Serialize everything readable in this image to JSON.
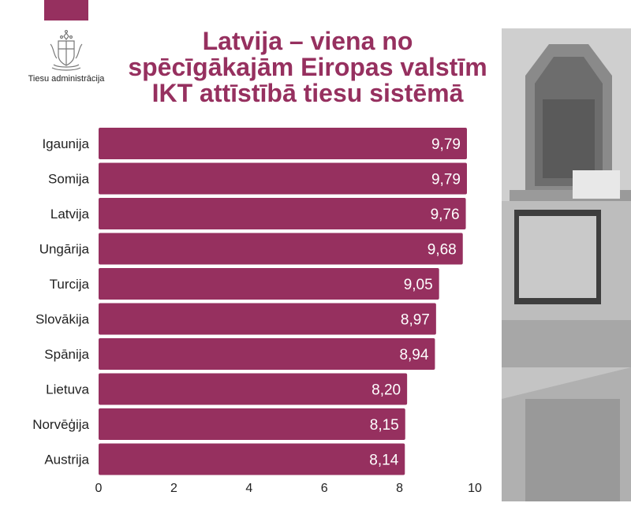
{
  "header": {
    "org_name": "Tiesu administrācija",
    "title_lines": [
      "Latvija – viena no",
      "spēcīgākajām Eiropas valstīm",
      "IKT attīstībā tiesu sistēmā"
    ]
  },
  "colors": {
    "accent": "#96305f",
    "text": "#222222"
  },
  "icons": {
    "logo": "coat-of-arms-icon"
  },
  "chart_data": {
    "type": "bar",
    "orientation": "horizontal",
    "categories": [
      "Igaunija",
      "Somija",
      "Latvija",
      "Ungārija",
      "Turcija",
      "Slovākija",
      "Spānija",
      "Lietuva",
      "Norvēģija",
      "Austrija"
    ],
    "values": [
      9.79,
      9.79,
      9.76,
      9.68,
      9.05,
      8.97,
      8.94,
      8.2,
      8.15,
      8.14
    ],
    "value_labels": [
      "9,79",
      "9,79",
      "9,76",
      "9,68",
      "9,05",
      "8,97",
      "8,94",
      "8,20",
      "8,15",
      "8,14"
    ],
    "xlim": [
      0,
      10
    ],
    "xticks": [
      0,
      2,
      4,
      6,
      8,
      10
    ],
    "grid": false,
    "legend": false
  }
}
